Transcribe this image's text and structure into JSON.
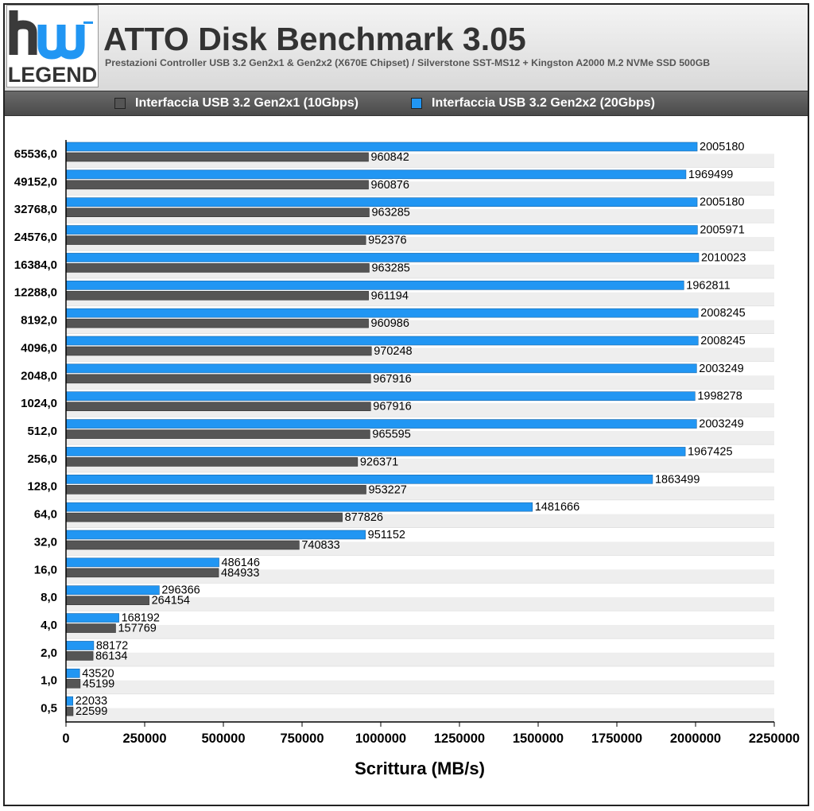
{
  "logo": {
    "top_text": "hw",
    "bottom_text": "LEGEND"
  },
  "header": {
    "title": "ATTO Disk Benchmark 3.05",
    "subtitle": "Prestazioni Controller USB 3.2 Gen2x1 & Gen2x2 (X670E Chipset) / Silverstone SST-MS12 + Kingston A2000 M.2 NVMe SSD 500GB"
  },
  "colors": {
    "gen2x1": "#555555",
    "gen2x2": "#2196f3"
  },
  "chart_data": {
    "type": "bar",
    "orientation": "horizontal",
    "categories": [
      "65536,0",
      "49152,0",
      "32768,0",
      "24576,0",
      "16384,0",
      "12288,0",
      "8192,0",
      "4096,0",
      "2048,0",
      "1024,0",
      "512,0",
      "256,0",
      "128,0",
      "64,0",
      "32,0",
      "16,0",
      "8,0",
      "4,0",
      "2,0",
      "1,0",
      "0,5"
    ],
    "series": [
      {
        "name": "Interfaccia USB 3.2 Gen2x2 (20Gbps)",
        "color": "#2196f3",
        "values": [
          2005180,
          1969499,
          2005180,
          2005971,
          2010023,
          1962811,
          2008245,
          2008245,
          2003249,
          1998278,
          2003249,
          1967425,
          1863499,
          1481666,
          951152,
          486146,
          296366,
          168192,
          88172,
          43520,
          22033
        ]
      },
      {
        "name": "Interfaccia USB 3.2 Gen2x1 (10Gbps)",
        "color": "#555555",
        "values": [
          960842,
          960876,
          963285,
          952376,
          963285,
          961194,
          960986,
          970248,
          967916,
          967916,
          965595,
          926371,
          953227,
          877826,
          740833,
          484933,
          264154,
          157769,
          86134,
          45199,
          22599
        ]
      }
    ],
    "xlabel": "Scrittura (MB/s)",
    "xlim": [
      0,
      2250000
    ],
    "xticks": [
      "0",
      "250000",
      "500000",
      "750000",
      "1000000",
      "1250000",
      "1500000",
      "1750000",
      "2000000",
      "2250000"
    ],
    "legend": [
      {
        "label": "Interfaccia USB 3.2 Gen2x1 (10Gbps)",
        "color": "#555555"
      },
      {
        "label": "Interfaccia USB 3.2 Gen2x2 (20Gbps)",
        "color": "#2196f3"
      }
    ],
    "legend_position": "top",
    "grid": false
  }
}
